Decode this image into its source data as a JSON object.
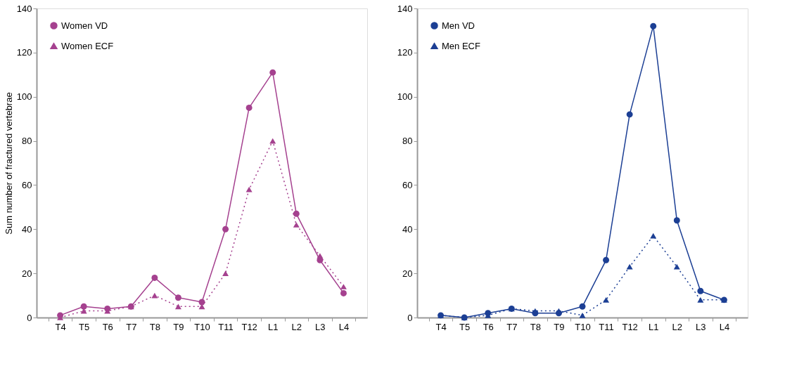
{
  "chart_data": [
    {
      "type": "line",
      "ylabel": "Sum number of fractured vertebrae",
      "categories": [
        "T4",
        "T5",
        "T6",
        "T7",
        "T8",
        "T9",
        "T10",
        "T11",
        "T12",
        "L1",
        "L2",
        "L3",
        "L4"
      ],
      "series": [
        {
          "name": "Women VD",
          "color": "#a5418f",
          "marker": "circle",
          "line_style": "solid",
          "values": [
            1,
            5,
            4,
            5,
            18,
            9,
            7,
            40,
            95,
            111,
            47,
            26,
            11
          ]
        },
        {
          "name": "Women ECF",
          "color": "#a5418f",
          "marker": "triangle",
          "line_style": "dotted",
          "values": [
            0,
            3,
            3,
            5,
            10,
            5,
            5,
            20,
            58,
            80,
            42,
            28,
            14
          ]
        }
      ],
      "ylim": [
        0,
        140
      ],
      "yticks": [
        0,
        20,
        40,
        60,
        80,
        100,
        120,
        140
      ],
      "grid": false,
      "legend": "top left"
    },
    {
      "type": "line",
      "categories": [
        "T4",
        "T5",
        "T6",
        "T7",
        "T8",
        "T9",
        "T10",
        "T11",
        "T12",
        "L1",
        "L2",
        "L3",
        "L4"
      ],
      "series": [
        {
          "name": "Men VD",
          "color": "#1c3f94",
          "marker": "circle",
          "line_style": "solid",
          "values": [
            1,
            0,
            2,
            4,
            2,
            2,
            5,
            26,
            92,
            132,
            44,
            12,
            8
          ]
        },
        {
          "name": "Men ECF",
          "color": "#1c3f94",
          "marker": "triangle",
          "line_style": "dotted",
          "values": [
            1,
            0,
            1,
            4,
            3,
            3,
            1,
            8,
            23,
            37,
            23,
            8,
            8
          ]
        }
      ],
      "ylim": [
        0,
        140
      ],
      "yticks": [
        0,
        20,
        40,
        60,
        80,
        100,
        120,
        140
      ],
      "grid": false,
      "legend": "top left"
    }
  ]
}
